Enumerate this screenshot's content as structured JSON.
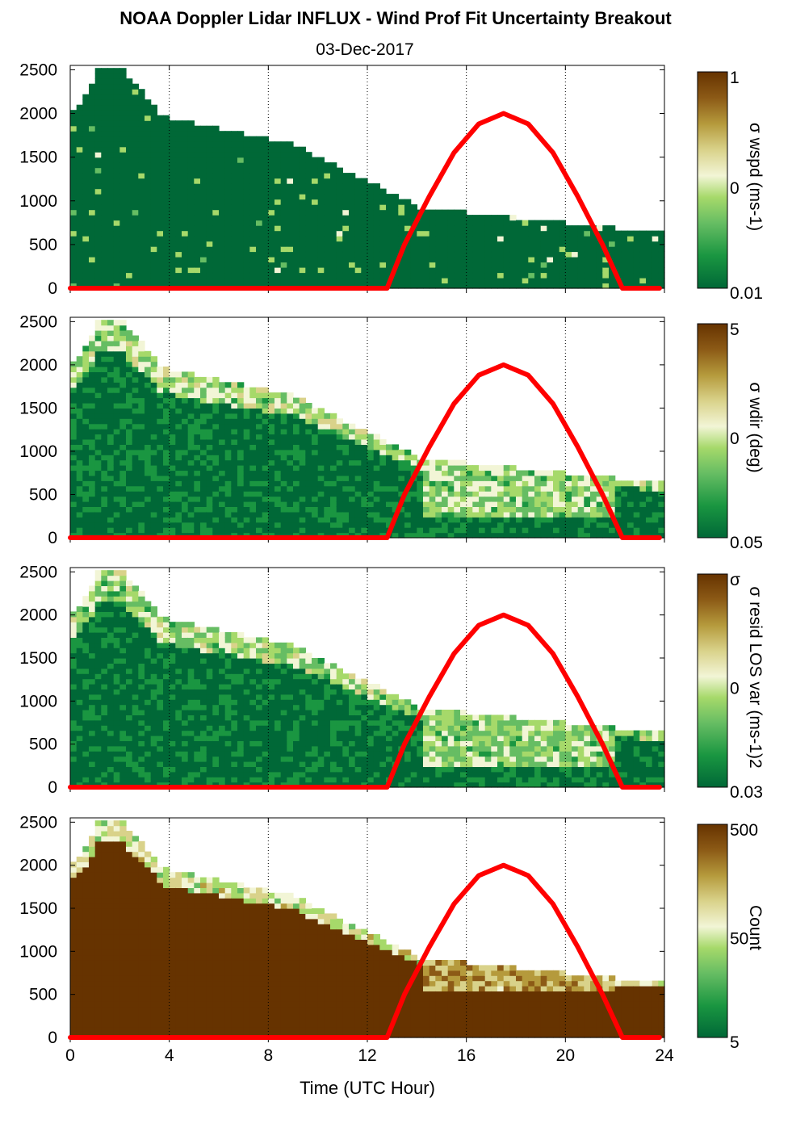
{
  "title": "NOAA Doppler Lidar INFLUX - Wind Prof Fit Uncertainty Breakout",
  "subtitle": "03-Dec-2017",
  "colors": {
    "sun_curve": "#ff0000",
    "colormap": [
      "#006837",
      "#1a9641",
      "#66bd63",
      "#a6d96a",
      "#f2f5d6",
      "#d9d28a",
      "#b59a3c",
      "#8c5a16",
      "#663300"
    ]
  },
  "chart_data": [
    {
      "type": "heatmap",
      "colorbar_label": "σ wspd (ms-1)",
      "colorbar_ticks": [
        "1",
        "0",
        "0.01"
      ],
      "xlabel": "",
      "x_ticks": [
        "0",
        "4",
        "8",
        "12",
        "16",
        "20",
        "24"
      ],
      "xlim": [
        0,
        24
      ],
      "ylabel": "",
      "y_ticks": [
        "0",
        "500",
        "1000",
        "1500",
        "2000",
        "2500"
      ],
      "ylim": [
        0,
        2550
      ],
      "grid": "vertical dotted lines at 4, 8, 12, 16, 20, 24",
      "series": [
        {
          "values": {
            "x": [
              12.8,
              13.5,
              14.5,
              15.5,
              16.5,
              17.5,
              18.5,
              19.5,
              20.5,
              21.5,
              22.3
            ],
            "y": [
              0,
              500,
              1050,
              1550,
              1880,
              2000,
              1880,
              1550,
              1050,
              500,
              0
            ]
          }
        }
      ]
    },
    {
      "type": "heatmap",
      "colorbar_label": "σ wdir (deg)",
      "colorbar_ticks": [
        "5",
        "0",
        "0.05"
      ],
      "xlabel": "",
      "x_ticks": [
        "0",
        "4",
        "8",
        "12",
        "16",
        "20",
        "24"
      ],
      "xlim": [
        0,
        24
      ],
      "ylabel": "",
      "y_ticks": [
        "0",
        "500",
        "1000",
        "1500",
        "2000",
        "2500"
      ],
      "ylim": [
        0,
        2550
      ],
      "grid": "vertical dotted lines at 4, 8, 12, 16, 20, 24",
      "series": [
        {
          "values": {
            "x": [
              12.8,
              13.5,
              14.5,
              15.5,
              16.5,
              17.5,
              18.5,
              19.5,
              20.5,
              21.5,
              22.3
            ],
            "y": [
              0,
              500,
              1050,
              1550,
              1880,
              2000,
              1880,
              1550,
              1050,
              500,
              0
            ]
          }
        }
      ]
    },
    {
      "type": "heatmap",
      "colorbar_label": "σ resid LOS var (ms-1)2",
      "colorbar_ticks": [
        "σ",
        "0",
        "0.03"
      ],
      "xlabel": "",
      "x_ticks": [
        "0",
        "4",
        "8",
        "12",
        "16",
        "20",
        "24"
      ],
      "xlim": [
        0,
        24
      ],
      "ylabel": "",
      "y_ticks": [
        "0",
        "500",
        "1000",
        "1500",
        "2000",
        "2500"
      ],
      "ylim": [
        0,
        2550
      ],
      "grid": "vertical dotted lines at 4, 8, 12, 16, 20, 24",
      "series": [
        {
          "values": {
            "x": [
              12.8,
              13.5,
              14.5,
              15.5,
              16.5,
              17.5,
              18.5,
              19.5,
              20.5,
              21.5,
              22.3
            ],
            "y": [
              0,
              500,
              1050,
              1550,
              1880,
              2000,
              1880,
              1550,
              1050,
              500,
              0
            ]
          }
        }
      ]
    },
    {
      "type": "heatmap",
      "colorbar_label": "Count",
      "colorbar_ticks": [
        "500",
        "50",
        "5"
      ],
      "xlabel": "Time (UTC Hour)",
      "x_ticks": [
        "0",
        "4",
        "8",
        "12",
        "16",
        "20",
        "24"
      ],
      "xlim": [
        0,
        24
      ],
      "ylabel": "",
      "y_ticks": [
        "0",
        "500",
        "1000",
        "1500",
        "2000",
        "2500"
      ],
      "ylim": [
        0,
        2550
      ],
      "grid": "vertical dotted lines at 4, 8, 12, 16, 20, 24",
      "series": [
        {
          "values": {
            "x": [
              12.8,
              13.5,
              14.5,
              15.5,
              16.5,
              17.5,
              18.5,
              19.5,
              20.5,
              21.5,
              22.3
            ],
            "y": [
              0,
              500,
              1050,
              1550,
              1880,
              2000,
              1880,
              1550,
              1050,
              500,
              0
            ]
          }
        }
      ]
    }
  ]
}
